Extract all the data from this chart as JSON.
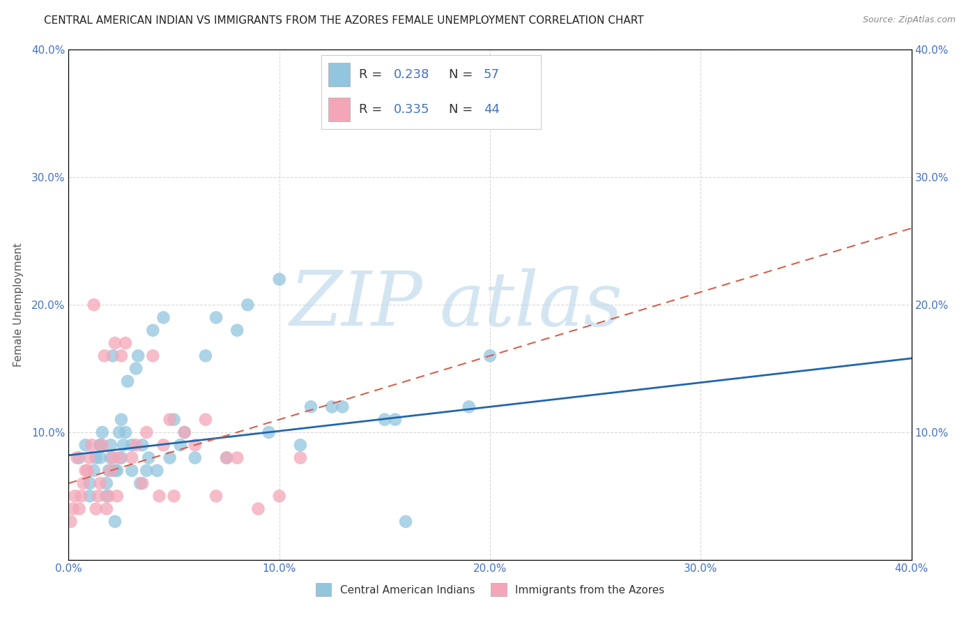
{
  "title": "CENTRAL AMERICAN INDIAN VS IMMIGRANTS FROM THE AZORES FEMALE UNEMPLOYMENT CORRELATION CHART",
  "source": "Source: ZipAtlas.com",
  "ylabel": "Female Unemployment",
  "xlim": [
    0.0,
    0.4
  ],
  "ylim": [
    0.0,
    0.4
  ],
  "x_ticks": [
    0.0,
    0.1,
    0.2,
    0.3,
    0.4
  ],
  "y_ticks": [
    0.0,
    0.1,
    0.2,
    0.3,
    0.4
  ],
  "blue_color": "#92c5de",
  "pink_color": "#f4a6b8",
  "blue_line_color": "#2166ac",
  "pink_line_color": "#d6604d",
  "watermark_zip": "ZIP",
  "watermark_atlas": "atlas",
  "legend_R_blue": "0.238",
  "legend_N_blue": "57",
  "legend_R_pink": "0.335",
  "legend_N_pink": "44",
  "blue_scatter_x": [
    0.005,
    0.008,
    0.01,
    0.01,
    0.012,
    0.013,
    0.015,
    0.015,
    0.015,
    0.016,
    0.018,
    0.018,
    0.019,
    0.02,
    0.02,
    0.021,
    0.022,
    0.022,
    0.023,
    0.024,
    0.025,
    0.025,
    0.026,
    0.027,
    0.028,
    0.03,
    0.03,
    0.032,
    0.033,
    0.034,
    0.035,
    0.037,
    0.038,
    0.04,
    0.042,
    0.045,
    0.048,
    0.05,
    0.053,
    0.055,
    0.06,
    0.065,
    0.07,
    0.075,
    0.08,
    0.085,
    0.095,
    0.1,
    0.11,
    0.115,
    0.125,
    0.13,
    0.15,
    0.155,
    0.16,
    0.19,
    0.2
  ],
  "blue_scatter_y": [
    0.08,
    0.09,
    0.05,
    0.06,
    0.07,
    0.08,
    0.08,
    0.09,
    0.09,
    0.1,
    0.05,
    0.06,
    0.07,
    0.08,
    0.09,
    0.16,
    0.03,
    0.07,
    0.07,
    0.1,
    0.11,
    0.08,
    0.09,
    0.1,
    0.14,
    0.07,
    0.09,
    0.15,
    0.16,
    0.06,
    0.09,
    0.07,
    0.08,
    0.18,
    0.07,
    0.19,
    0.08,
    0.11,
    0.09,
    0.1,
    0.08,
    0.16,
    0.19,
    0.08,
    0.18,
    0.2,
    0.1,
    0.22,
    0.09,
    0.12,
    0.12,
    0.12,
    0.11,
    0.11,
    0.03,
    0.12,
    0.16
  ],
  "pink_scatter_x": [
    0.001,
    0.002,
    0.003,
    0.004,
    0.005,
    0.006,
    0.007,
    0.008,
    0.009,
    0.01,
    0.011,
    0.012,
    0.013,
    0.014,
    0.015,
    0.016,
    0.017,
    0.018,
    0.019,
    0.02,
    0.021,
    0.022,
    0.023,
    0.024,
    0.025,
    0.027,
    0.03,
    0.032,
    0.035,
    0.037,
    0.04,
    0.043,
    0.045,
    0.048,
    0.05,
    0.055,
    0.06,
    0.065,
    0.07,
    0.075,
    0.08,
    0.09,
    0.1,
    0.11
  ],
  "pink_scatter_y": [
    0.03,
    0.04,
    0.05,
    0.08,
    0.04,
    0.05,
    0.06,
    0.07,
    0.07,
    0.08,
    0.09,
    0.2,
    0.04,
    0.05,
    0.06,
    0.09,
    0.16,
    0.04,
    0.05,
    0.07,
    0.08,
    0.17,
    0.05,
    0.08,
    0.16,
    0.17,
    0.08,
    0.09,
    0.06,
    0.1,
    0.16,
    0.05,
    0.09,
    0.11,
    0.05,
    0.1,
    0.09,
    0.11,
    0.05,
    0.08,
    0.08,
    0.04,
    0.05,
    0.08
  ],
  "blue_trend_x": [
    0.0,
    0.4
  ],
  "blue_trend_y": [
    0.082,
    0.158
  ],
  "pink_trend_x": [
    0.0,
    0.4
  ],
  "pink_trend_y": [
    0.06,
    0.26
  ],
  "background_color": "#ffffff",
  "grid_color": "#d9d9d9",
  "title_fontsize": 11,
  "axis_label_fontsize": 11,
  "tick_fontsize": 11
}
